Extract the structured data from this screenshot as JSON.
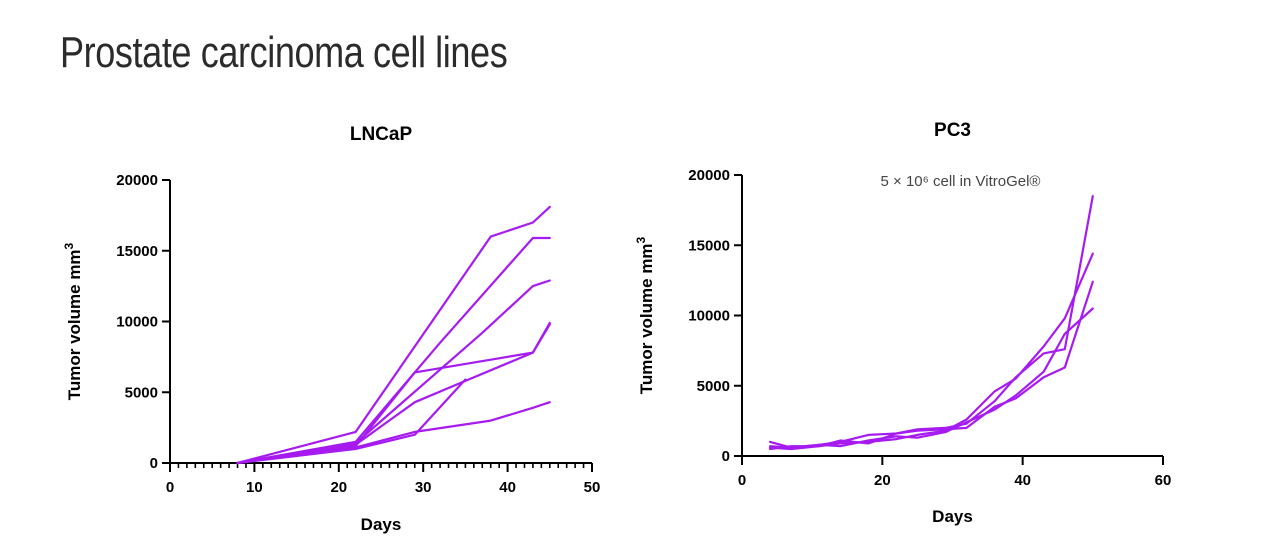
{
  "page": {
    "title": "Prostate carcinoma cell lines"
  },
  "colors": {
    "series": "#a61bf0",
    "axis": "#000000"
  },
  "chart_data": [
    {
      "type": "line",
      "title": "LNCaP",
      "xlabel": "Days",
      "ylabel": "Tumor volume mm",
      "ylabel_sup": "3",
      "xlim": [
        0,
        50
      ],
      "ylim": [
        0,
        20000
      ],
      "xticks": [
        0,
        10,
        20,
        30,
        40,
        50
      ],
      "yticks": [
        0,
        5000,
        10000,
        15000,
        20000
      ],
      "minor_x_step": 1,
      "series": [
        {
          "x": [
            8,
            22,
            38,
            43,
            45
          ],
          "y": [
            0,
            2200,
            16000,
            17000,
            18100
          ]
        },
        {
          "x": [
            8,
            22,
            32,
            43,
            45
          ],
          "y": [
            0,
            1500,
            8500,
            15900,
            15900
          ]
        },
        {
          "x": [
            8,
            22,
            37,
            43,
            45
          ],
          "y": [
            0,
            1400,
            9200,
            12500,
            12900
          ]
        },
        {
          "x": [
            8,
            22,
            29,
            38,
            43,
            45
          ],
          "y": [
            0,
            1200,
            6400,
            7300,
            7800,
            9800
          ]
        },
        {
          "x": [
            8,
            22,
            29,
            35,
            43,
            45
          ],
          "y": [
            0,
            1300,
            4300,
            5800,
            7800,
            9900
          ]
        },
        {
          "x": [
            8,
            22,
            29,
            38,
            43,
            45
          ],
          "y": [
            0,
            1100,
            2200,
            3000,
            3900,
            4300
          ]
        },
        {
          "x": [
            8,
            22,
            29,
            35
          ],
          "y": [
            0,
            1000,
            2000,
            5900
          ]
        }
      ]
    },
    {
      "type": "line",
      "title": "PC3",
      "annotation": "5 × 10⁶ cell in VitroGel®",
      "xlabel": "Days",
      "ylabel": "Tumor volume mm",
      "ylabel_sup": "3",
      "xlim": [
        0,
        60
      ],
      "ylim": [
        0,
        20000
      ],
      "xticks": [
        0,
        20,
        40,
        60
      ],
      "yticks": [
        0,
        5000,
        10000,
        15000,
        20000
      ],
      "series": [
        {
          "x": [
            4,
            7,
            11,
            14,
            18,
            22,
            25,
            29,
            32,
            36,
            39,
            43,
            46,
            50
          ],
          "y": [
            1000,
            600,
            800,
            1000,
            1500,
            1600,
            1900,
            2000,
            2300,
            3900,
            5600,
            7300,
            7600,
            18500
          ]
        },
        {
          "x": [
            4,
            7,
            11,
            14,
            18,
            22,
            25,
            29,
            32,
            36,
            39,
            43,
            46,
            50
          ],
          "y": [
            600,
            500,
            700,
            900,
            1000,
            1200,
            1500,
            1800,
            2600,
            4600,
            5500,
            7800,
            9800,
            14400
          ]
        },
        {
          "x": [
            4,
            7,
            11,
            14,
            18,
            22,
            25,
            29,
            32,
            36,
            39,
            43,
            46,
            50
          ],
          "y": [
            500,
            700,
            700,
            1100,
            900,
            1600,
            1800,
            1900,
            2000,
            3500,
            4100,
            5600,
            6300,
            12400
          ]
        },
        {
          "x": [
            4,
            7,
            11,
            14,
            18,
            22,
            25,
            29,
            32,
            36,
            39,
            43,
            46,
            50
          ],
          "y": [
            700,
            600,
            800,
            700,
            1100,
            1400,
            1300,
            1700,
            2400,
            3300,
            4300,
            6000,
            8700,
            10500
          ]
        }
      ]
    }
  ]
}
